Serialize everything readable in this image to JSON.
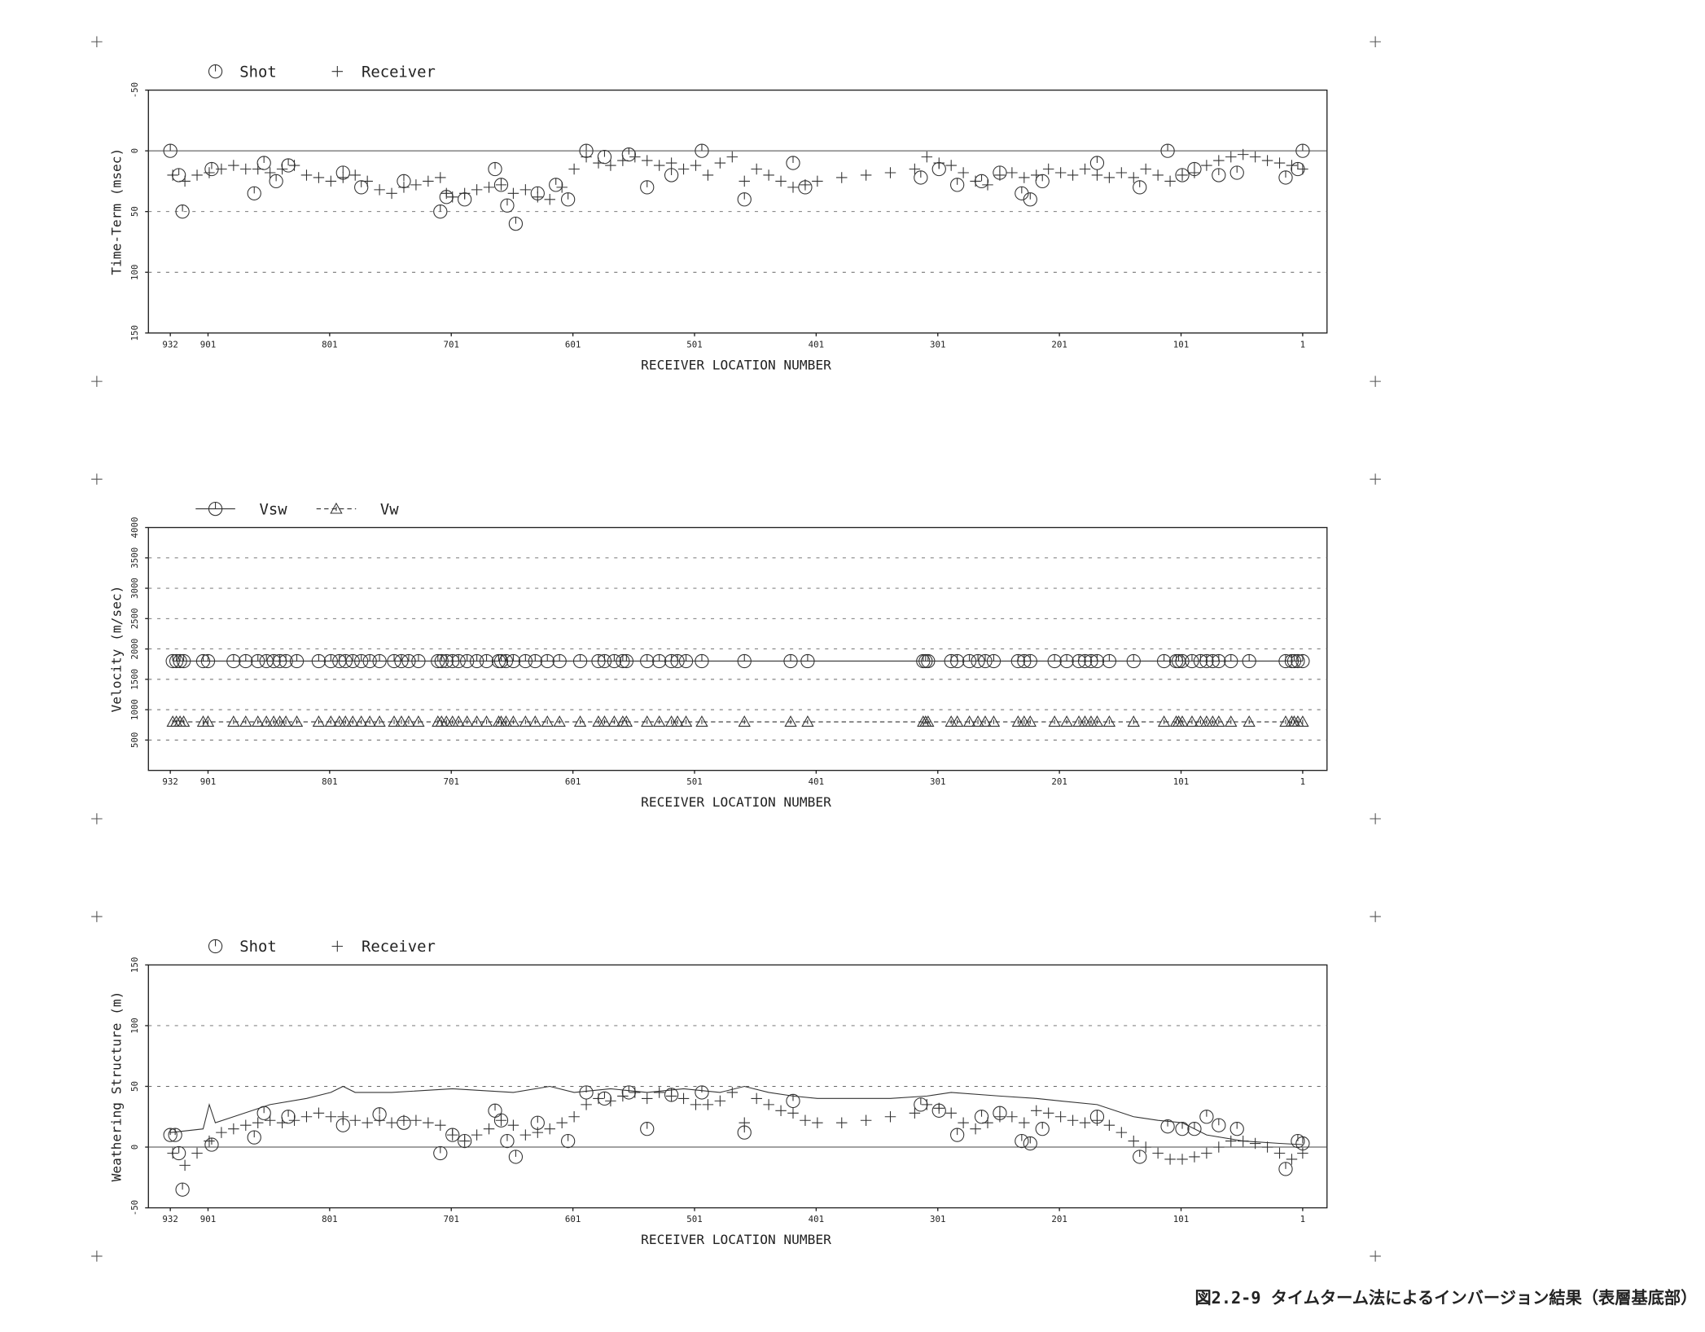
{
  "caption": "図2.2-9 タイムターム法によるインバージョン結果（表層基底部）",
  "chart_data": [
    {
      "type": "scatter",
      "ylabel": "Time-Term (msec)",
      "xlabel": "RECEIVER LOCATION NUMBER",
      "xlim": [
        950,
        -19
      ],
      "xticks": [
        932,
        901,
        801,
        701,
        601,
        501,
        401,
        301,
        201,
        101,
        1
      ],
      "ylim": [
        150,
        -50
      ],
      "yticks": [
        -50,
        0,
        50,
        100,
        150
      ],
      "grid": true,
      "zero_line": true,
      "series": [
        {
          "name": "Shot",
          "color": "#333",
          "marker": "circle",
          "x": [
            932,
            925,
            922,
            898,
            863,
            855,
            845,
            835,
            790,
            775,
            740,
            710,
            705,
            690,
            665,
            660,
            655,
            648,
            630,
            615,
            605,
            590,
            575,
            555,
            540,
            520,
            495,
            460,
            420,
            410,
            315,
            300,
            285,
            265,
            250,
            232,
            225,
            215,
            170,
            135,
            112,
            100,
            90,
            70,
            55,
            15,
            5,
            1
          ],
          "values": [
            0,
            20,
            50,
            15,
            35,
            10,
            25,
            12,
            18,
            30,
            25,
            50,
            38,
            40,
            15,
            28,
            45,
            60,
            35,
            28,
            40,
            0,
            5,
            3,
            30,
            20,
            0,
            40,
            10,
            30,
            22,
            15,
            28,
            25,
            18,
            35,
            40,
            25,
            10,
            30,
            0,
            20,
            15,
            20,
            18,
            22,
            15,
            0
          ]
        },
        {
          "name": "Receiver",
          "color": "#333",
          "marker": "plus",
          "x": [
            930,
            920,
            910,
            900,
            890,
            880,
            870,
            860,
            850,
            840,
            830,
            820,
            810,
            800,
            790,
            780,
            770,
            760,
            750,
            740,
            730,
            720,
            710,
            705,
            700,
            690,
            680,
            670,
            660,
            650,
            640,
            630,
            620,
            610,
            600,
            590,
            580,
            570,
            560,
            550,
            540,
            530,
            520,
            510,
            500,
            490,
            480,
            470,
            460,
            450,
            440,
            430,
            420,
            410,
            400,
            380,
            360,
            340,
            320,
            310,
            300,
            290,
            280,
            270,
            260,
            250,
            240,
            230,
            220,
            210,
            200,
            190,
            180,
            170,
            160,
            150,
            140,
            130,
            120,
            110,
            100,
            90,
            80,
            70,
            60,
            50,
            40,
            30,
            20,
            10,
            1
          ],
          "values": [
            20,
            25,
            20,
            18,
            15,
            12,
            15,
            15,
            18,
            15,
            12,
            20,
            22,
            25,
            22,
            20,
            25,
            32,
            35,
            30,
            28,
            25,
            22,
            35,
            38,
            35,
            32,
            30,
            28,
            35,
            32,
            38,
            40,
            30,
            15,
            5,
            10,
            12,
            8,
            5,
            8,
            12,
            10,
            15,
            12,
            20,
            10,
            5,
            25,
            15,
            20,
            25,
            30,
            28,
            25,
            22,
            20,
            18,
            15,
            5,
            10,
            12,
            18,
            25,
            28,
            20,
            18,
            22,
            20,
            15,
            18,
            20,
            15,
            20,
            22,
            18,
            22,
            15,
            20,
            25,
            20,
            18,
            12,
            8,
            5,
            3,
            5,
            8,
            10,
            12,
            15
          ]
        }
      ]
    },
    {
      "type": "scatter",
      "ylabel": "Velocity (m/sec)",
      "xlabel": "RECEIVER LOCATION NUMBER",
      "xlim": [
        950,
        -19
      ],
      "xticks": [
        932,
        901,
        801,
        701,
        601,
        501,
        401,
        301,
        201,
        101,
        1
      ],
      "ylim": [
        0,
        4000
      ],
      "yticks": [
        500,
        1000,
        1500,
        2000,
        2500,
        3000,
        3500,
        4000
      ],
      "grid": true,
      "series": [
        {
          "name": "Vsw",
          "color": "#333",
          "marker": "circle",
          "line": "solid",
          "x": [
            930,
            927,
            924,
            921,
            905,
            901,
            880,
            870,
            860,
            853,
            847,
            842,
            837,
            828,
            810,
            800,
            793,
            788,
            782,
            775,
            768,
            760,
            748,
            742,
            736,
            728,
            712,
            709,
            705,
            700,
            695,
            688,
            680,
            672,
            662,
            660,
            656,
            650,
            640,
            632,
            622,
            612,
            595,
            580,
            575,
            567,
            560,
            557,
            540,
            530,
            520,
            515,
            508,
            495,
            460,
            422,
            408,
            313,
            311,
            309,
            290,
            285,
            275,
            268,
            262,
            255,
            235,
            230,
            225,
            205,
            195,
            185,
            180,
            175,
            170,
            160,
            140,
            115,
            105,
            103,
            100,
            92,
            85,
            80,
            75,
            70,
            60,
            45,
            15,
            10,
            8,
            5,
            1
          ],
          "values": [
            1800,
            1800,
            1800,
            1800,
            1800,
            1800,
            1800,
            1800,
            1800,
            1800,
            1800,
            1800,
            1800,
            1800,
            1800,
            1800,
            1800,
            1800,
            1800,
            1800,
            1800,
            1800,
            1800,
            1800,
            1800,
            1800,
            1800,
            1800,
            1800,
            1800,
            1800,
            1800,
            1800,
            1800,
            1800,
            1800,
            1800,
            1800,
            1800,
            1800,
            1800,
            1800,
            1800,
            1800,
            1800,
            1800,
            1800,
            1800,
            1800,
            1800,
            1800,
            1800,
            1800,
            1800,
            1800,
            1800,
            1800,
            1800,
            1800,
            1800,
            1800,
            1800,
            1800,
            1800,
            1800,
            1800,
            1800,
            1800,
            1800,
            1800,
            1800,
            1800,
            1800,
            1800,
            1800,
            1800,
            1800,
            1800,
            1800,
            1800,
            1800,
            1800,
            1800,
            1800,
            1800,
            1800,
            1800,
            1800,
            1800,
            1800,
            1800,
            1800,
            1800
          ]
        },
        {
          "name": "Vw",
          "color": "#333",
          "marker": "triangle",
          "line": "dashed",
          "x": [
            930,
            927,
            924,
            921,
            905,
            901,
            880,
            870,
            860,
            853,
            847,
            842,
            837,
            828,
            810,
            800,
            793,
            788,
            782,
            775,
            768,
            760,
            748,
            742,
            736,
            728,
            712,
            709,
            705,
            700,
            695,
            688,
            680,
            672,
            662,
            660,
            656,
            650,
            640,
            632,
            622,
            612,
            595,
            580,
            575,
            567,
            560,
            557,
            540,
            530,
            520,
            515,
            508,
            495,
            460,
            422,
            408,
            313,
            311,
            309,
            290,
            285,
            275,
            268,
            262,
            255,
            235,
            230,
            225,
            205,
            195,
            185,
            180,
            175,
            170,
            160,
            140,
            115,
            105,
            103,
            100,
            92,
            85,
            80,
            75,
            70,
            60,
            45,
            15,
            10,
            8,
            5,
            1
          ],
          "values": [
            800,
            800,
            800,
            800,
            800,
            800,
            800,
            800,
            800,
            800,
            800,
            800,
            800,
            800,
            800,
            800,
            800,
            800,
            800,
            800,
            800,
            800,
            800,
            800,
            800,
            800,
            800,
            800,
            800,
            800,
            800,
            800,
            800,
            800,
            800,
            800,
            800,
            800,
            800,
            800,
            800,
            800,
            800,
            800,
            800,
            800,
            800,
            800,
            800,
            800,
            800,
            800,
            800,
            800,
            800,
            800,
            800,
            800,
            800,
            800,
            800,
            800,
            800,
            800,
            800,
            800,
            800,
            800,
            800,
            800,
            800,
            800,
            800,
            800,
            800,
            800,
            800,
            800,
            800,
            800,
            800,
            800,
            800,
            800,
            800,
            800,
            800,
            800,
            800,
            800,
            800,
            800,
            800
          ]
        }
      ]
    },
    {
      "type": "scatter",
      "ylabel": "Weathering Structure (m)",
      "xlabel": "RECEIVER LOCATION NUMBER",
      "xlim": [
        950,
        -19
      ],
      "xticks": [
        932,
        901,
        801,
        701,
        601,
        501,
        401,
        301,
        201,
        101,
        1
      ],
      "ylim": [
        -50,
        150
      ],
      "yticks": [
        -50,
        0,
        50,
        100,
        150
      ],
      "grid": true,
      "zero_line": true,
      "series": [
        {
          "name": "Shot",
          "color": "#333",
          "marker": "circle",
          "x": [
            932,
            928,
            925,
            922,
            898,
            863,
            855,
            835,
            790,
            760,
            740,
            710,
            700,
            690,
            665,
            660,
            655,
            648,
            630,
            605,
            590,
            575,
            555,
            540,
            520,
            495,
            460,
            420,
            315,
            300,
            285,
            265,
            250,
            232,
            225,
            215,
            170,
            135,
            112,
            100,
            90,
            80,
            70,
            55,
            15,
            5,
            1
          ],
          "values": [
            10,
            10,
            -5,
            -35,
            2,
            8,
            28,
            25,
            18,
            27,
            20,
            -5,
            10,
            5,
            30,
            22,
            5,
            -8,
            20,
            5,
            45,
            40,
            45,
            15,
            43,
            45,
            12,
            38,
            35,
            30,
            10,
            25,
            28,
            5,
            3,
            15,
            25,
            -8,
            17,
            15,
            15,
            25,
            18,
            15,
            -18,
            5,
            3
          ]
        },
        {
          "name": "Receiver",
          "color": "#333",
          "marker": "plus",
          "x": [
            930,
            920,
            910,
            900,
            890,
            880,
            870,
            860,
            850,
            840,
            830,
            820,
            810,
            800,
            790,
            780,
            770,
            760,
            750,
            740,
            730,
            720,
            710,
            700,
            690,
            680,
            670,
            660,
            650,
            640,
            630,
            620,
            610,
            600,
            590,
            580,
            570,
            560,
            550,
            540,
            530,
            520,
            510,
            500,
            490,
            480,
            470,
            460,
            450,
            440,
            430,
            420,
            410,
            400,
            380,
            360,
            340,
            320,
            310,
            300,
            290,
            280,
            270,
            260,
            250,
            240,
            230,
            220,
            210,
            200,
            190,
            180,
            170,
            160,
            150,
            140,
            130,
            120,
            110,
            100,
            90,
            80,
            70,
            60,
            50,
            40,
            30,
            20,
            10,
            1
          ],
          "values": [
            -5,
            -15,
            -5,
            5,
            12,
            15,
            18,
            20,
            22,
            20,
            22,
            25,
            28,
            25,
            25,
            22,
            20,
            22,
            20,
            22,
            22,
            20,
            18,
            10,
            5,
            10,
            15,
            22,
            18,
            10,
            12,
            15,
            20,
            25,
            35,
            40,
            38,
            42,
            45,
            40,
            45,
            42,
            40,
            35,
            35,
            38,
            45,
            20,
            40,
            35,
            30,
            28,
            22,
            20,
            20,
            22,
            25,
            28,
            35,
            32,
            28,
            20,
            15,
            20,
            25,
            25,
            20,
            30,
            28,
            25,
            22,
            20,
            22,
            18,
            12,
            5,
            0,
            -5,
            -10,
            -10,
            -8,
            -5,
            0,
            5,
            5,
            3,
            0,
            -5,
            -10,
            -5
          ]
        },
        {
          "color": "#333",
          "marker": "none",
          "line": "solid",
          "x": [
            932,
            905,
            900,
            895,
            880,
            850,
            820,
            800,
            790,
            780,
            750,
            700,
            650,
            620,
            600,
            570,
            540,
            510,
            480,
            460,
            440,
            420,
            400,
            340,
            310,
            290,
            250,
            220,
            200,
            170,
            140,
            120,
            100,
            80,
            50,
            20,
            1
          ],
          "values": [
            12,
            15,
            35,
            20,
            25,
            35,
            40,
            45,
            50,
            45,
            45,
            48,
            45,
            50,
            45,
            48,
            45,
            48,
            45,
            50,
            45,
            42,
            40,
            40,
            42,
            45,
            42,
            40,
            38,
            35,
            25,
            22,
            20,
            10,
            5,
            3,
            2
          ]
        }
      ]
    }
  ]
}
